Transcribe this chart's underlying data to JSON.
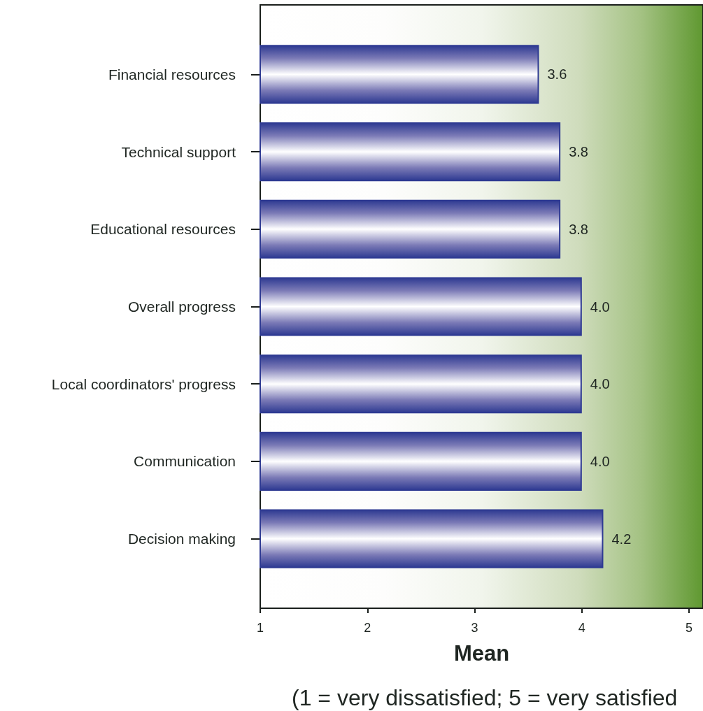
{
  "chart_data": {
    "type": "bar",
    "orientation": "horizontal",
    "categories": [
      "Financial resources",
      "Technical support",
      "Educational resources",
      "Overall progress",
      "Local coordinators' progress",
      "Communication",
      "Decision making"
    ],
    "values": [
      3.6,
      3.8,
      3.8,
      4.0,
      4.0,
      4.0,
      4.2
    ],
    "value_labels": [
      "3.6",
      "3.8",
      "3.8",
      "4.0",
      "4.0",
      "4.0",
      "4.2"
    ],
    "color": "#2e3a92",
    "xlabel": "Mean",
    "annotations": [
      "(1 = very dissatisfied; 5 = very satisfied"
    ],
    "xlim": [
      1,
      5.13
    ],
    "xticks": [
      1,
      2,
      3,
      4,
      5
    ]
  }
}
